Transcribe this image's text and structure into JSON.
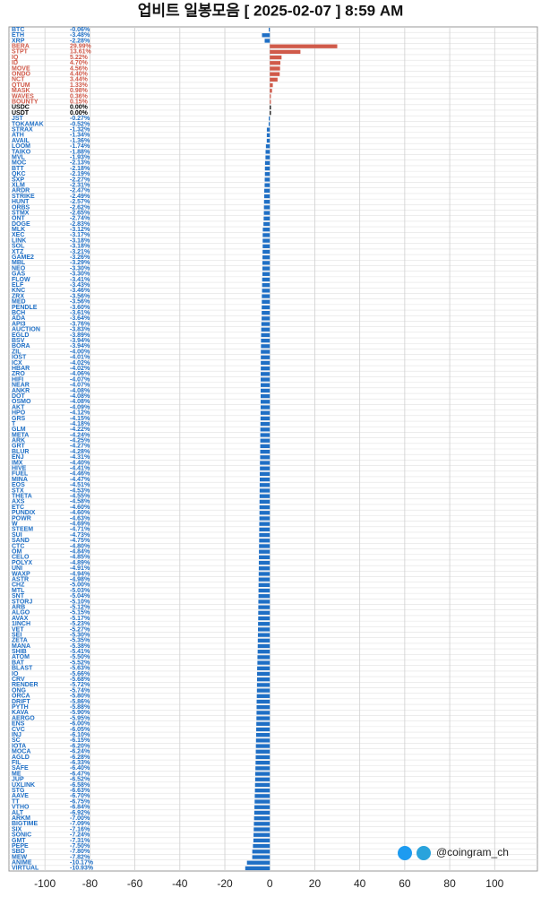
{
  "chart_data": {
    "type": "hbar",
    "title": "업비트 일봉모음 [ 2025-02-07 ]  8:59 AM",
    "watermark": "@coingram_ch",
    "categories": [
      "BTC",
      "ETH",
      "XRP",
      "BERA",
      "STPT",
      "IQ",
      "ID",
      "MOVE",
      "ONDO",
      "NCT",
      "QTUM",
      "MASK",
      "WAVES",
      "BOUNTY",
      "USDC",
      "USDT",
      "JST",
      "TOKAMAK",
      "STRAX",
      "ATH",
      "AVAIL",
      "LOOM",
      "TAIKO",
      "MVL",
      "MOC",
      "BTT",
      "QKC",
      "SXP",
      "XLM",
      "ARDR",
      "STRIKE",
      "HUNT",
      "ORBS",
      "STMX",
      "ONT",
      "DOGE",
      "MLK",
      "XEC",
      "LINK",
      "SOL",
      "XTZ",
      "GAME2",
      "MBL",
      "NEO",
      "GAS",
      "FLOW",
      "ELF",
      "KNC",
      "ZRX",
      "MED",
      "PENDLE",
      "BCH",
      "ADA",
      "API3",
      "AUCTION",
      "EGLD",
      "BSV",
      "BORA",
      "ZIL",
      "IOST",
      "ICX",
      "HBAR",
      "ZRO",
      "HIFI",
      "NEAR",
      "ANKR",
      "DOT",
      "OSMO",
      "AKT",
      "HPO",
      "GRS",
      "T",
      "GLM",
      "META",
      "ARK",
      "GRT",
      "BLUR",
      "ENJ",
      "IMX",
      "HIVE",
      "FUEL",
      "MINA",
      "EOS",
      "STX",
      "THETA",
      "AXS",
      "ETC",
      "PUNDIX",
      "POWR",
      "W",
      "STEEM",
      "SUI",
      "SAND",
      "CTC",
      "OM",
      "CELO",
      "POLYX",
      "UNI",
      "WAXP",
      "ASTR",
      "CHZ",
      "MTL",
      "SNT",
      "STORJ",
      "ARB",
      "ALGO",
      "AVAX",
      "1INCH",
      "VET",
      "SEI",
      "ZETA",
      "MANA",
      "SHIB",
      "ATOM",
      "BAT",
      "BLAST",
      "IO",
      "CRV",
      "RENDER",
      "ONG",
      "ORCA",
      "DRIFT",
      "PYTH",
      "KAVA",
      "AERGO",
      "ENS",
      "CVC",
      "INJ",
      "SC",
      "IOTA",
      "MOCA",
      "AGLD",
      "FIL",
      "SAFE",
      "ME",
      "JUP",
      "UXLINK",
      "STG",
      "AAVE",
      "TT",
      "VTHO",
      "ALT",
      "ARKM",
      "BIGTIME",
      "SIX",
      "SONIC",
      "GMT",
      "PEPE",
      "SBD",
      "MEW",
      "ANIME",
      "VIRTUAL"
    ],
    "values": [
      -0.06,
      -3.48,
      -2.28,
      29.99,
      13.61,
      5.22,
      4.7,
      4.56,
      4.4,
      3.44,
      1.33,
      0.98,
      0.36,
      0.15,
      0,
      0,
      -0.27,
      -0.52,
      -1.32,
      -1.34,
      -1.36,
      -1.74,
      -1.88,
      -1.93,
      -2.13,
      -2.18,
      -2.19,
      -2.27,
      -2.31,
      -2.47,
      -2.49,
      -2.57,
      -2.62,
      -2.65,
      -2.74,
      -2.83,
      -3.12,
      -3.17,
      -3.18,
      -3.18,
      -3.21,
      -3.26,
      -3.29,
      -3.3,
      -3.3,
      -3.41,
      -3.43,
      -3.46,
      -3.56,
      -3.56,
      -3.6,
      -3.61,
      -3.64,
      -3.76,
      -3.83,
      -3.89,
      -3.94,
      -3.94,
      -4,
      -4.01,
      -4.02,
      -4.02,
      -4.06,
      -4.07,
      -4.07,
      -4.08,
      -4.08,
      -4.08,
      -4.09,
      -4.12,
      -4.15,
      -4.18,
      -4.22,
      -4.24,
      -4.25,
      -4.27,
      -4.28,
      -4.31,
      -4.4,
      -4.41,
      -4.46,
      -4.47,
      -4.51,
      -4.53,
      -4.55,
      -4.58,
      -4.6,
      -4.6,
      -4.63,
      -4.69,
      -4.71,
      -4.73,
      -4.75,
      -4.8,
      -4.84,
      -4.85,
      -4.89,
      -4.91,
      -4.94,
      -4.98,
      -5,
      -5.03,
      -5.04,
      -5.1,
      -5.12,
      -5.15,
      -5.17,
      -5.23,
      -5.27,
      -5.3,
      -5.35,
      -5.38,
      -5.41,
      -5.5,
      -5.52,
      -5.63,
      -5.66,
      -5.68,
      -5.72,
      -5.74,
      -5.8,
      -5.86,
      -5.88,
      -5.9,
      -5.95,
      -6,
      -6.05,
      -6.1,
      -6.15,
      -6.2,
      -6.24,
      -6.28,
      -6.33,
      -6.4,
      -6.47,
      -6.52,
      -6.58,
      -6.63,
      -6.7,
      -6.75,
      -6.84,
      -6.92,
      -7,
      -7.09,
      -7.16,
      -7.24,
      -7.31,
      -7.5,
      -7.8,
      -7.82,
      -10.17,
      -10.93
    ],
    "value_labels": [
      "-0.06%",
      "-3.48%",
      "-2.28%",
      "29.99%",
      "13.61%",
      "5.22%",
      "4.70%",
      "4.56%",
      "4.40%",
      "3.44%",
      "1.33%",
      "0.98%",
      "0.36%",
      "0.15%",
      "0.00%",
      "0.00%",
      "-0.27%",
      "-0.52%",
      "-1.32%",
      "-1.34%",
      "-1.36%",
      "-1.74%",
      "-1.88%",
      "-1.93%",
      "-2.13%",
      "-2.18%",
      "-2.19%",
      "-2.27%",
      "-2.31%",
      "-2.47%",
      "-2.49%",
      "-2.57%",
      "-2.62%",
      "-2.65%",
      "-2.74%",
      "-2.83%",
      "-3.12%",
      "-3.17%",
      "-3.18%",
      "-3.18%",
      "-3.21%",
      "-3.26%",
      "-3.29%",
      "-3.30%",
      "-3.30%",
      "-3.41%",
      "-3.43%",
      "-3.46%",
      "-3.56%",
      "-3.56%",
      "-3.60%",
      "-3.61%",
      "-3.64%",
      "-3.76%",
      "-3.83%",
      "-3.89%",
      "-3.94%",
      "-3.94%",
      "-4.00%",
      "-4.01%",
      "-4.02%",
      "-4.02%",
      "-4.06%",
      "-4.07%",
      "-4.07%",
      "-4.08%",
      "-4.08%",
      "-4.08%",
      "-4.09%",
      "-4.12%",
      "-4.15%",
      "-4.18%",
      "-4.22%",
      "-4.24%",
      "-4.25%",
      "-4.27%",
      "-4.28%",
      "-4.31%",
      "-4.40%",
      "-4.41%",
      "-4.46%",
      "-4.47%",
      "-4.51%",
      "-4.53%",
      "-4.55%",
      "-4.58%",
      "-4.60%",
      "-4.60%",
      "-4.63%",
      "-4.69%",
      "-4.71%",
      "-4.73%",
      "-4.75%",
      "-4.80%",
      "-4.84%",
      "-4.85%",
      "-4.89%",
      "-4.91%",
      "-4.94%",
      "-4.98%",
      "-5.00%",
      "-5.03%",
      "-5.04%",
      "-5.10%",
      "-5.12%",
      "-5.15%",
      "-5.17%",
      "-5.23%",
      "-5.27%",
      "-5.30%",
      "-5.35%",
      "-5.38%",
      "-5.41%",
      "-5.50%",
      "-5.52%",
      "-5.63%",
      "-5.66%",
      "-5.68%",
      "-5.72%",
      "-5.74%",
      "-5.80%",
      "-5.86%",
      "-5.88%",
      "-5.90%",
      "-5.95%",
      "-6.00%",
      "-6.05%",
      "-6.10%",
      "-6.15%",
      "-6.20%",
      "-6.24%",
      "-6.28%",
      "-6.33%",
      "-6.40%",
      "-6.47%",
      "-6.52%",
      "-6.58%",
      "-6.63%",
      "-6.70%",
      "-6.75%",
      "-6.84%",
      "-6.92%",
      "-7.00%",
      "-7.09%",
      "-7.16%",
      "-7.24%",
      "-7.31%",
      "-7.50%",
      "-7.80%",
      "-7.82%",
      "-10.17%",
      "-10.93%"
    ],
    "up_color": "#d05a4a",
    "down_color": "#1f6fc5",
    "flat_color": "#000000",
    "xlim": [
      -116,
      119
    ],
    "xticks": [
      -100,
      -80,
      -60,
      -40,
      -20,
      0,
      20,
      40,
      60,
      80,
      100
    ],
    "grid": true
  }
}
